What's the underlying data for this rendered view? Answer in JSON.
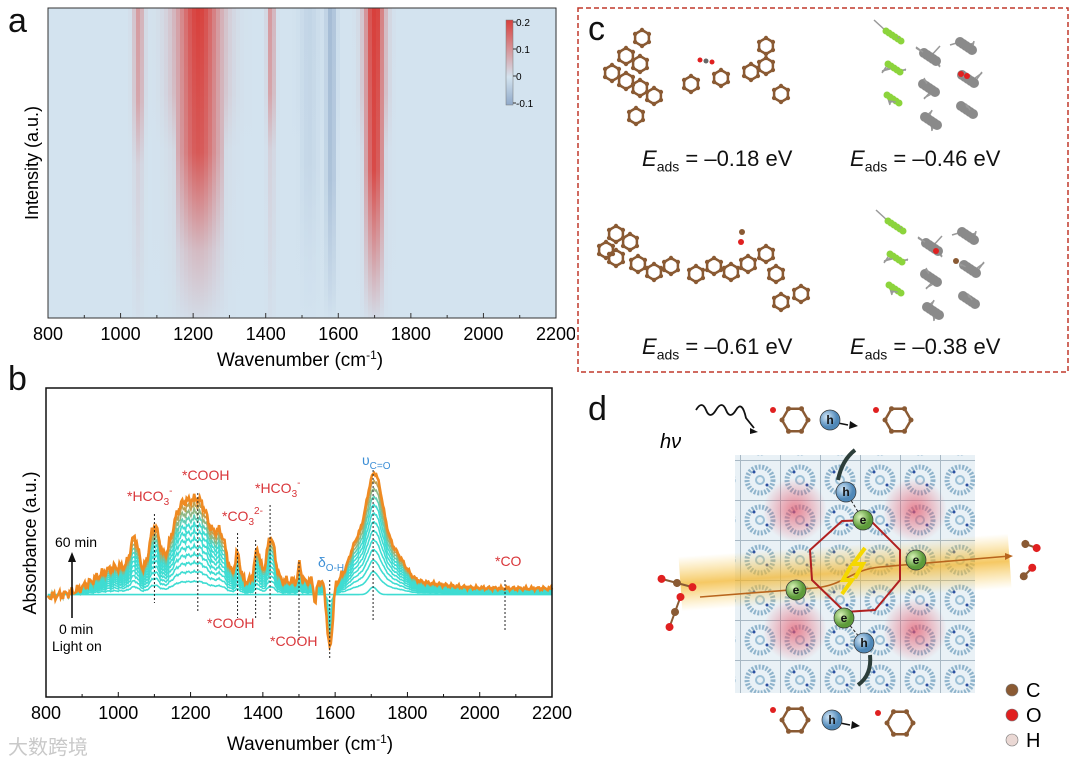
{
  "panels": {
    "a": "a",
    "b": "b",
    "c": "c",
    "d": "d"
  },
  "chart_data": [
    {
      "panel": "a",
      "type": "heatmap",
      "xlabel": "Wavenumber (cm",
      "xlabel_sup": "-1",
      "xlabel_end": ")",
      "ylabel": "Intensity (a.u.)",
      "xlim": [
        800,
        2200
      ],
      "xticks": [
        "800",
        "1000",
        "1200",
        "1400",
        "1600",
        "1800",
        "2000",
        "2200"
      ],
      "colorbar": {
        "range": [
          -0.1,
          0.2
        ],
        "ticks": [
          "0.2",
          "0.1",
          "0",
          "-0.1"
        ],
        "low_color": "#8fa9c9",
        "mid_color": "#d3e3ef",
        "high_color": "#d8403c"
      },
      "bands": [
        {
          "center": 1050,
          "width": 14,
          "value": 0.09,
          "depth": 0.55
        },
        {
          "center": 1215,
          "width": 60,
          "value": 0.2,
          "depth": 0.85
        },
        {
          "center": 1415,
          "width": 10,
          "value": 0.1,
          "depth": 0.5
        },
        {
          "center": 1520,
          "width": 25,
          "value": -0.025,
          "depth": 0.9
        },
        {
          "center": 1580,
          "width": 14,
          "value": -0.07,
          "depth": 1.0
        },
        {
          "center": 1700,
          "width": 26,
          "value": 0.22,
          "depth": 0.95
        }
      ]
    },
    {
      "panel": "b",
      "type": "line",
      "xlabel": "Wavenumber (cm",
      "xlabel_sup": "-1",
      "xlabel_end": ")",
      "ylabel": "Absorbance (a.u.)",
      "xlim": [
        800,
        2200
      ],
      "ylim": [
        -0.75,
        1.8
      ],
      "xticks": [
        "800",
        "1000",
        "1200",
        "1400",
        "1600",
        "1800",
        "2000",
        "2200"
      ],
      "times_min": [
        0,
        5,
        10,
        15,
        20,
        25,
        30,
        35,
        40,
        45,
        50,
        55,
        60
      ],
      "start_color": "#3fdcd2",
      "end_color": "#ef8a22",
      "peaks_at_60min": [
        {
          "center": 1000,
          "width": 70,
          "amp": 0.12
        },
        {
          "center": 1045,
          "width": 16,
          "amp": 0.28
        },
        {
          "center": 1100,
          "width": 20,
          "amp": 0.42
        },
        {
          "center": 1170,
          "width": 38,
          "amp": 0.52
        },
        {
          "center": 1228,
          "width": 42,
          "amp": 0.6
        },
        {
          "center": 1285,
          "width": 22,
          "amp": 0.3
        },
        {
          "center": 1330,
          "width": 10,
          "amp": 0.22
        },
        {
          "center": 1385,
          "width": 11,
          "amp": 0.26
        },
        {
          "center": 1422,
          "width": 16,
          "amp": 0.36
        },
        {
          "center": 1502,
          "width": 5,
          "amp": 0.15
        },
        {
          "center": 1545,
          "width": 5,
          "amp": -0.18
        },
        {
          "center": 1585,
          "width": 11,
          "amp": -0.55
        },
        {
          "center": 1655,
          "width": 28,
          "amp": 0.25
        },
        {
          "center": 1708,
          "width": 34,
          "amp": 0.85
        },
        {
          "center": 1765,
          "width": 40,
          "amp": 0.22
        }
      ],
      "annotations": [
        {
          "base": "*HCO",
          "sub": "3",
          "sup": "-",
          "x": 1100,
          "color": "#d9363a"
        },
        {
          "base": "*COOH",
          "sub": "",
          "sup": "",
          "x": 1220,
          "color": "#d9363a"
        },
        {
          "base": "*CO",
          "sub": "3",
          "sup": "2-",
          "x": 1380,
          "color": "#d9363a"
        },
        {
          "base": "*HCO",
          "sub": "3",
          "sup": "-",
          "x": 1420,
          "color": "#d9363a"
        },
        {
          "base": "*COOH",
          "sub": "",
          "sup": "",
          "x": 1330,
          "color": "#d9363a"
        },
        {
          "base": "*COOH",
          "sub": "",
          "sup": "",
          "x": 1500,
          "color": "#d9363a"
        },
        {
          "base": "δ",
          "sub": "O-H",
          "sup": "",
          "x": 1585,
          "color": "#3d8fd6"
        },
        {
          "base": "υ",
          "sub": "C=O",
          "sup": "",
          "x": 1705,
          "color": "#3d8fd6"
        },
        {
          "base": "*CO",
          "sub": "",
          "sup": "",
          "x": 2070,
          "color": "#d9363a"
        }
      ],
      "arrow_top_label": "60 min",
      "arrow_bottom_label": "0 min",
      "arrow_note": "Light on"
    }
  ],
  "panel_c": {
    "eads": [
      {
        "sym": "E",
        "sub": "ads",
        "text": " = –0.18 eV"
      },
      {
        "sym": "E",
        "sub": "ads",
        "text": " = –0.46 eV"
      },
      {
        "sym": "E",
        "sub": "ads",
        "text": " = –0.61 eV"
      },
      {
        "sym": "E",
        "sub": "ads",
        "text": " = –0.38 eV"
      }
    ]
  },
  "panel_d": {
    "photon": "hν",
    "electron": "e",
    "hole": "h",
    "legend": [
      {
        "label": "C",
        "color": "#8a5a33"
      },
      {
        "label": "O",
        "color": "#e02020"
      },
      {
        "label": "H",
        "color": "#ead8d4"
      }
    ]
  },
  "watermark": "大数跨境"
}
